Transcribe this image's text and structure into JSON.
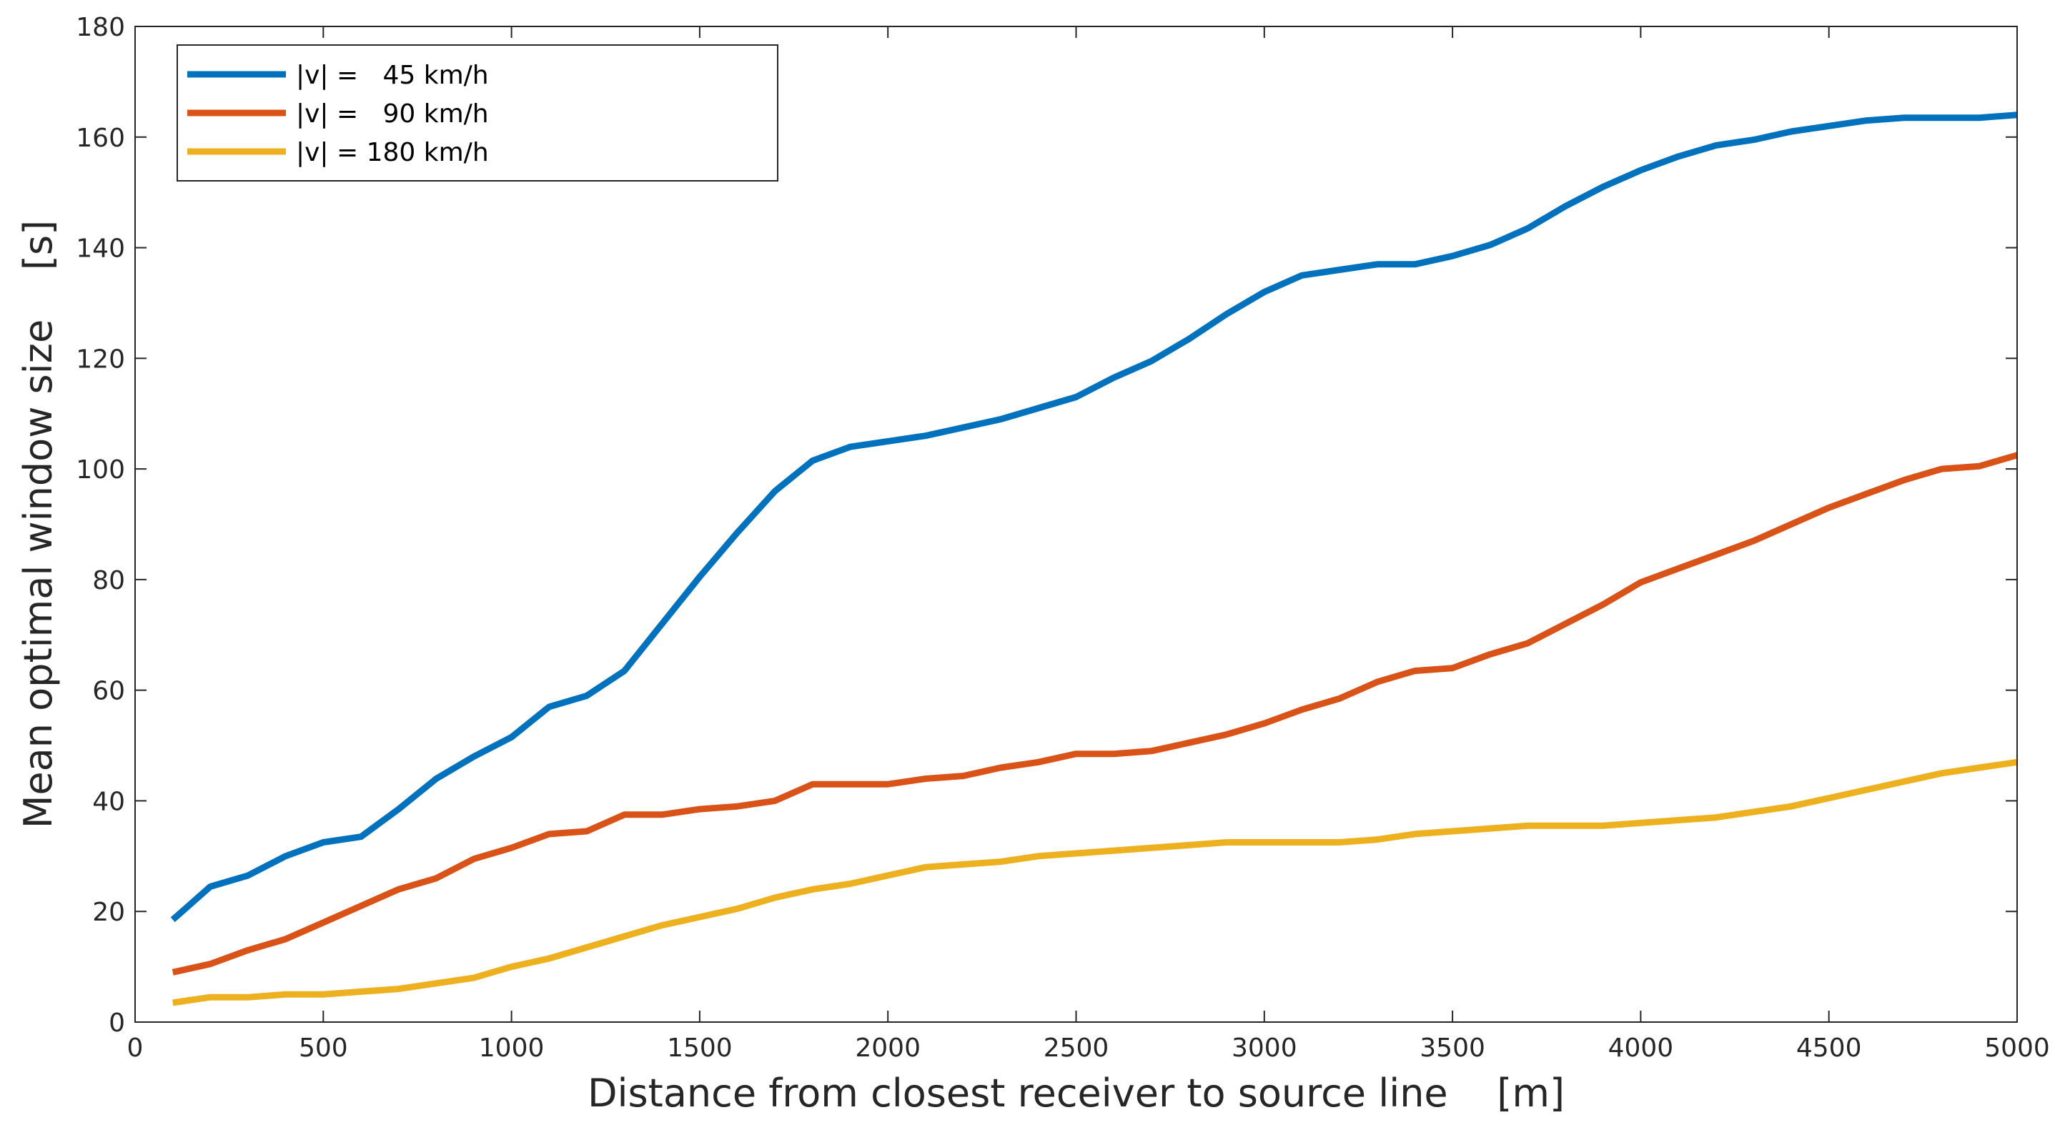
{
  "chart_data": {
    "type": "line",
    "title": "",
    "xlabel": "Distance from closest receiver to source line    [m]",
    "ylabel": "Mean optimal window size    [s]",
    "xlim": [
      0,
      5000
    ],
    "ylim": [
      0,
      180
    ],
    "xticks": [
      0,
      500,
      1000,
      1500,
      2000,
      2500,
      3000,
      3500,
      4000,
      4500,
      5000
    ],
    "yticks": [
      0,
      20,
      40,
      60,
      80,
      100,
      120,
      140,
      160,
      180
    ],
    "grid": false,
    "legend_position": "top-left",
    "x": [
      100,
      200,
      300,
      400,
      500,
      600,
      700,
      800,
      900,
      1000,
      1100,
      1200,
      1300,
      1400,
      1500,
      1600,
      1700,
      1800,
      1900,
      2000,
      2100,
      2200,
      2300,
      2400,
      2500,
      2600,
      2700,
      2800,
      2900,
      3000,
      3100,
      3200,
      3300,
      3400,
      3500,
      3600,
      3700,
      3800,
      3900,
      4000,
      4100,
      4200,
      4300,
      4400,
      4500,
      4600,
      4700,
      4800,
      4900,
      5000
    ],
    "series": [
      {
        "name": "|v| =   45 km/h",
        "color": "#0072BD",
        "values": [
          18.5,
          24.5,
          26.5,
          30,
          32.5,
          33.5,
          38.5,
          44,
          48,
          51.5,
          57,
          59,
          63.5,
          72,
          80.5,
          88.5,
          96,
          101.5,
          104,
          105,
          106,
          107.5,
          109,
          111,
          113,
          116.5,
          119.5,
          123.5,
          128,
          132,
          135,
          136,
          137,
          137,
          138.5,
          140.5,
          143.5,
          147.5,
          151,
          154,
          156.5,
          158.5,
          159.5,
          161,
          162,
          163,
          163.5,
          163.5,
          163.5,
          164
        ]
      },
      {
        "name": "|v| =   90 km/h",
        "color": "#D95319",
        "values": [
          9,
          10.5,
          13,
          15,
          18,
          21,
          24,
          26,
          29.5,
          31.5,
          34,
          34.5,
          37.5,
          37.5,
          38.5,
          39,
          40,
          43,
          43,
          43,
          44,
          44.5,
          46,
          47,
          48.5,
          48.5,
          49,
          50.5,
          52,
          54,
          56.5,
          58.5,
          61.5,
          63.5,
          64,
          66.5,
          68.5,
          72,
          75.5,
          79.5,
          82,
          84.5,
          87,
          90,
          93,
          95.5,
          98,
          100,
          100.5,
          102.5
        ]
      },
      {
        "name": "|v| = 180 km/h",
        "color": "#EDB120",
        "values": [
          3.5,
          4.5,
          4.5,
          5,
          5,
          5.5,
          6,
          7,
          8,
          10,
          11.5,
          13.5,
          15.5,
          17.5,
          19,
          20.5,
          22.5,
          24,
          25,
          26.5,
          28,
          28.5,
          29,
          30,
          30.5,
          31,
          31.5,
          32,
          32.5,
          32.5,
          32.5,
          32.5,
          33,
          34,
          34.5,
          35,
          35.5,
          35.5,
          35.5,
          36,
          36.5,
          37,
          38,
          39,
          40.5,
          42,
          43.5,
          45,
          46,
          47
        ]
      }
    ]
  }
}
